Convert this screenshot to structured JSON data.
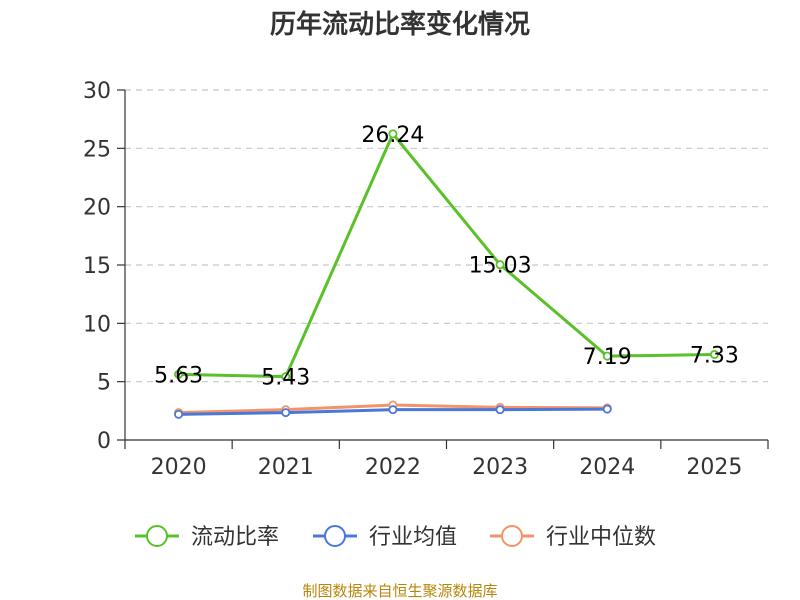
{
  "chart_data": {
    "type": "line",
    "title": "历年流动比率变化情况",
    "categories": [
      "2020",
      "2021",
      "2022",
      "2023",
      "2024",
      "2025"
    ],
    "ylim": [
      0,
      30
    ],
    "yticks": [
      0,
      5,
      10,
      15,
      20,
      25,
      30
    ],
    "grid": true,
    "legend_position": "bottom",
    "series": [
      {
        "name": "流动比率",
        "color": "#5ac12a",
        "values": [
          5.63,
          5.43,
          26.24,
          15.03,
          7.19,
          7.33
        ],
        "labels": [
          "5.63",
          "5.43",
          "26.24",
          "15.03",
          "7.19",
          "7.33"
        ]
      },
      {
        "name": "行业均值",
        "color": "#4a78d8",
        "values": [
          2.2,
          2.35,
          2.6,
          2.6,
          2.65,
          null
        ]
      },
      {
        "name": "行业中位数",
        "color": "#f3936a",
        "values": [
          2.35,
          2.6,
          3.0,
          2.8,
          2.75,
          null
        ]
      }
    ]
  },
  "source_text": "制图数据来自恒生聚源数据库"
}
